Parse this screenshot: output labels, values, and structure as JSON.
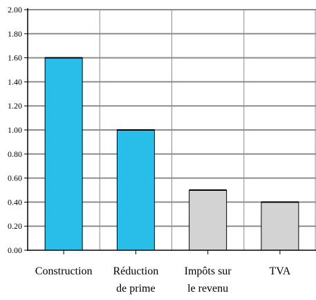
{
  "chart_data": {
    "type": "bar",
    "title": "",
    "xlabel": "",
    "ylabel": "",
    "categories": [
      [
        "Construction"
      ],
      [
        "Réduction",
        "de prime"
      ],
      [
        "Impôts sur",
        "le revenu"
      ],
      [
        "TVA"
      ]
    ],
    "values": [
      1.6,
      1.0,
      0.5,
      0.4
    ],
    "bar_colors": [
      "#29BDEA",
      "#29BDEA",
      "#D3D3D3",
      "#D3D3D3"
    ],
    "ylim": [
      0,
      2.0
    ],
    "yticks": [
      "0.00",
      "0.20",
      "0.40",
      "0.60",
      "0.80",
      "1.00",
      "1.20",
      "1.40",
      "1.60",
      "1.80",
      "2.00"
    ],
    "grid": true,
    "grid_color": "#8C8C8C",
    "legend": false
  }
}
